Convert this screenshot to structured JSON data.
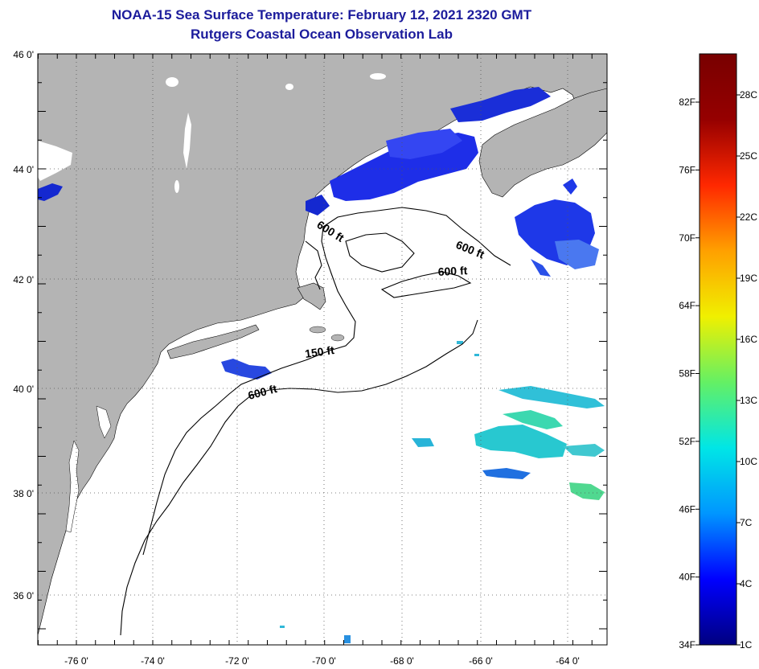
{
  "header": {
    "title": "NOAA-15 Sea Surface Temperature:  February 12, 2021 2320 GMT",
    "subtitle": "Rutgers Coastal Ocean Observation Lab"
  },
  "map": {
    "lat_labels": [
      "46 0'",
      "44 0'",
      "42 0'",
      "40 0'",
      "38 0'",
      "36 0'"
    ],
    "lon_labels": [
      "-76 0'",
      "-74 0'",
      "-72 0'",
      "-70 0'",
      "-68 0'",
      "-66 0'",
      "-64 0'"
    ],
    "contour_labels": [
      "600 ft",
      "600 ft",
      "600 ft",
      "150 ft",
      "600 ft"
    ],
    "colors": {
      "land": "#b4b4b4",
      "ocean": "#ffffff",
      "frame": "#000000"
    }
  },
  "colorbar": {
    "f_labels": [
      "82F",
      "76F",
      "70F",
      "64F",
      "58F",
      "52F",
      "46F",
      "40F",
      "34F"
    ],
    "c_labels": [
      "28C",
      "25C",
      "22C",
      "19C",
      "16C",
      "13C",
      "10C",
      "7C",
      "4C",
      "1C"
    ],
    "gradient": [
      "#000080",
      "#0000ff",
      "#0096ff",
      "#00e6e6",
      "#64f064",
      "#f0f000",
      "#ffa000",
      "#ff2800",
      "#960000",
      "#780000"
    ]
  }
}
